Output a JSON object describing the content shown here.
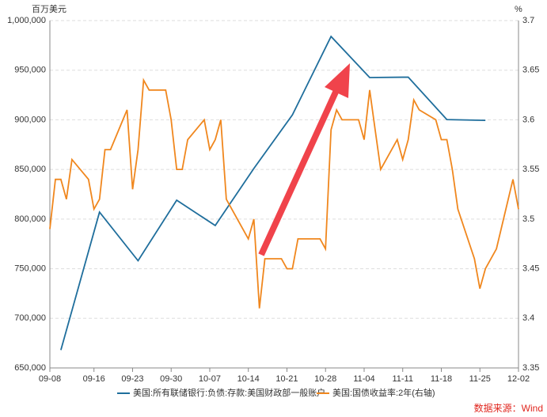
{
  "chart_data": {
    "type": "line",
    "y_label": "百万美元",
    "y2_label": "%",
    "source": "数据来源：Wind",
    "xlim": [
      "09-08",
      "12-02"
    ],
    "xticks": [
      "09-08",
      "09-16",
      "09-23",
      "09-30",
      "10-07",
      "10-14",
      "10-21",
      "10-28",
      "11-04",
      "11-11",
      "11-18",
      "11-25",
      "12-02"
    ],
    "ylim": [
      650000,
      1000000
    ],
    "yticks": [
      {
        "value": 650000,
        "label": "650,000"
      },
      {
        "value": 700000,
        "label": "700,000"
      },
      {
        "value": 750000,
        "label": "750,000"
      },
      {
        "value": 800000,
        "label": "800,000"
      },
      {
        "value": 850000,
        "label": "850,000"
      },
      {
        "value": 900000,
        "label": "900,000"
      },
      {
        "value": 950000,
        "label": "950,000"
      },
      {
        "value": 1000000,
        "label": "1,000,000"
      }
    ],
    "y2lim": [
      3.35,
      3.7
    ],
    "y2ticks": [
      3.35,
      3.4,
      3.45,
      3.5,
      3.55,
      3.6,
      3.65,
      3.7
    ],
    "grid": true,
    "series": [
      {
        "name": "美国:所有联储银行:负债:存款:美国财政部一般账户",
        "color": "#1f6e9c",
        "x": [
          "09-10",
          "09-17",
          "09-24",
          "10-01",
          "10-08",
          "10-15",
          "10-22",
          "10-29",
          "11-05",
          "11-12",
          "11-19",
          "11-26"
        ],
        "values": [
          668000,
          807000,
          758000,
          819000,
          793500,
          851000,
          905000,
          984000,
          942600,
          943000,
          900300,
          899500
        ]
      },
      {
        "name": "美国:国债收益率:2年(右轴)",
        "color": "#f0871e",
        "axis": "y2",
        "x": [
          "09-08",
          "09-09",
          "09-10",
          "09-11",
          "09-12",
          "09-15",
          "09-16",
          "09-17",
          "09-18",
          "09-19",
          "09-22",
          "09-23",
          "09-24",
          "09-25",
          "09-26",
          "09-29",
          "09-30",
          "10-01",
          "10-02",
          "10-03",
          "10-06",
          "10-07",
          "10-08",
          "10-09",
          "10-10",
          "10-13",
          "10-14",
          "10-15",
          "10-16",
          "10-17",
          "10-20",
          "10-21",
          "10-22",
          "10-23",
          "10-24",
          "10-27",
          "10-28",
          "10-29",
          "10-30",
          "10-31",
          "11-03",
          "11-04",
          "11-05",
          "11-06",
          "11-07",
          "11-10",
          "11-11",
          "11-12",
          "11-13",
          "11-14",
          "11-17",
          "11-18",
          "11-19",
          "11-20",
          "11-21",
          "11-24",
          "11-25",
          "11-26",
          "11-28",
          "12-01",
          "12-02"
        ],
        "values": [
          3.49,
          3.54,
          3.54,
          3.52,
          3.56,
          3.54,
          3.51,
          3.52,
          3.57,
          3.57,
          3.61,
          3.53,
          3.57,
          3.64,
          3.63,
          3.63,
          3.6,
          3.55,
          3.55,
          3.58,
          3.6,
          3.57,
          3.58,
          3.6,
          3.52,
          3.49,
          3.48,
          3.5,
          3.41,
          3.46,
          3.46,
          3.45,
          3.45,
          3.48,
          3.48,
          3.48,
          3.47,
          3.59,
          3.61,
          3.6,
          3.6,
          3.58,
          3.63,
          3.59,
          3.55,
          3.58,
          3.56,
          3.58,
          3.62,
          3.61,
          3.6,
          3.58,
          3.58,
          3.55,
          3.51,
          3.46,
          3.43,
          3.45,
          3.47,
          3.54,
          3.51
        ]
      }
    ]
  }
}
